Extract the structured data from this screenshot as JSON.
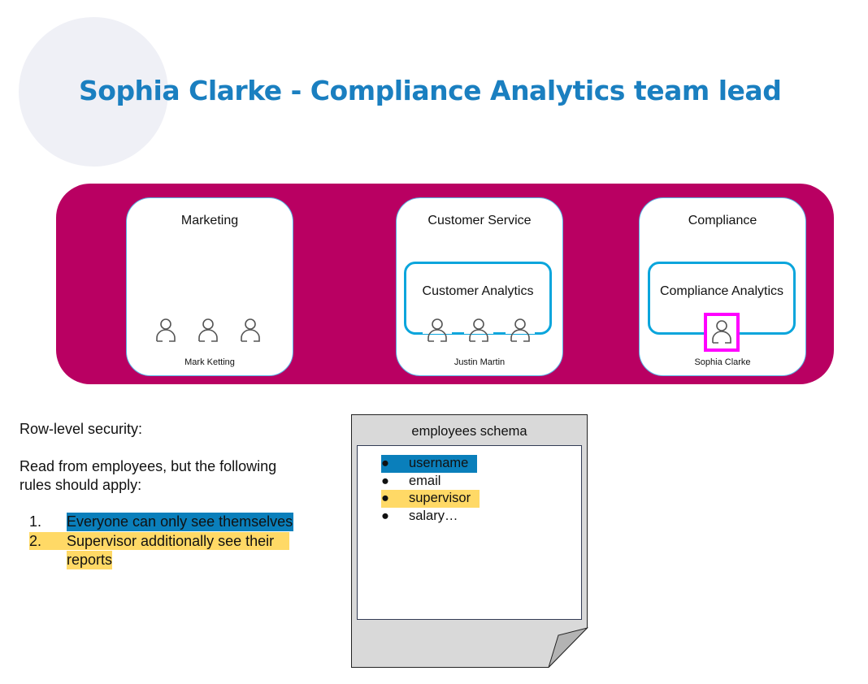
{
  "title": "Sophia Clarke - Compliance Analytics team lead",
  "colors": {
    "title": "#1a7fc0",
    "band": "#b90062",
    "team_border": "#0aa5dc",
    "highlight_user": "#ff00ff",
    "highlight_blue": "#0a7fbb",
    "highlight_yellow": "#ffd966"
  },
  "departments": [
    {
      "name": "Marketing",
      "lead": "Mark Ketting"
    },
    {
      "name": "Customer Service",
      "team": "Customer Analytics",
      "lead": "Justin Martin"
    },
    {
      "name": "Compliance",
      "team": "Compliance Analytics",
      "lead": "Sophia Clarke"
    }
  ],
  "rls": {
    "heading": "Row-level security:",
    "intro_line1": "Read from employees, but the following",
    "intro_line2": "rules should apply:",
    "rules": [
      {
        "num": "1.",
        "line1": "Everyone can only see themselves"
      },
      {
        "num": "2.",
        "line1": "Supervisor additionally see their",
        "line2": "reports"
      }
    ]
  },
  "schema": {
    "title": "employees schema",
    "fields": [
      "username",
      "email",
      "supervisor",
      "salary…"
    ]
  }
}
